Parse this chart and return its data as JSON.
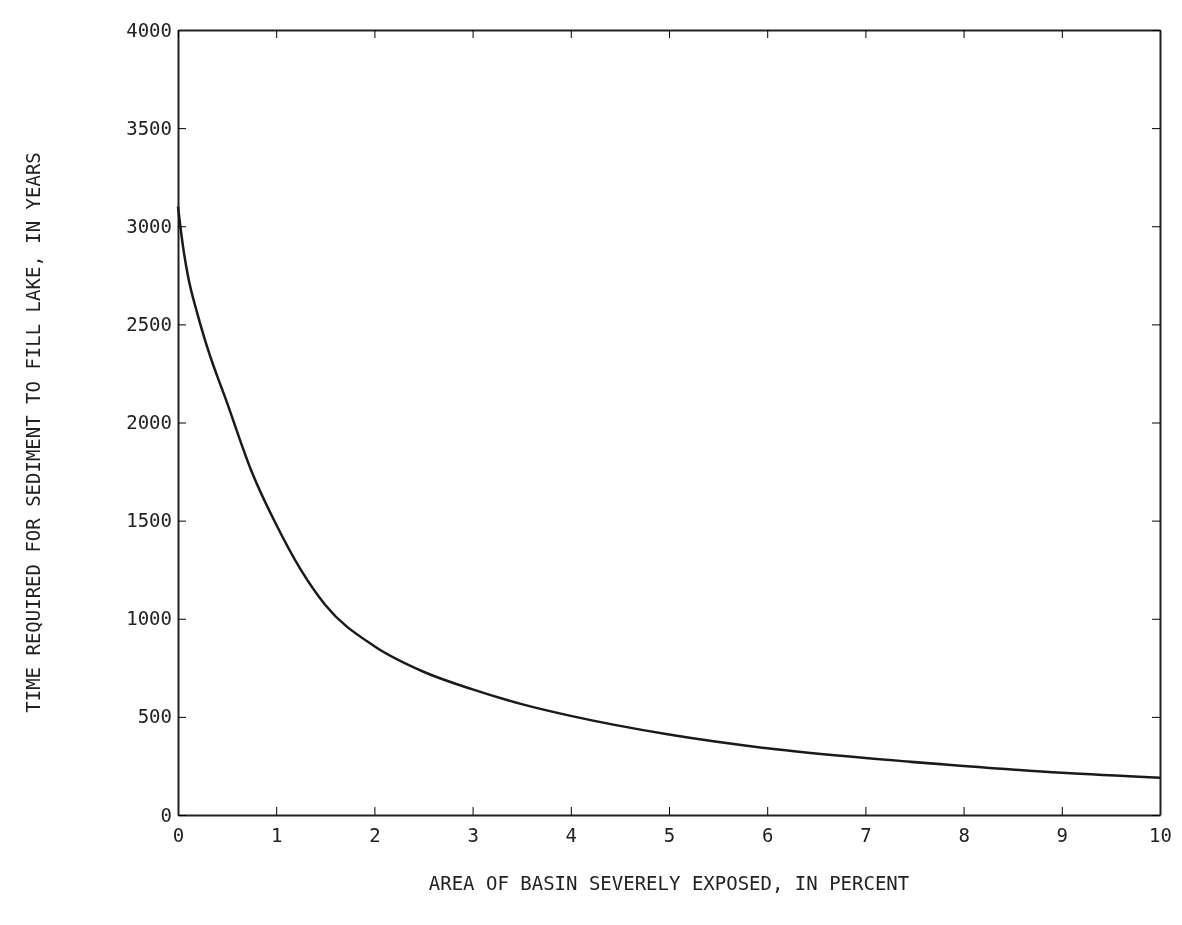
{
  "chart_data": {
    "type": "line",
    "xlabel": "AREA OF BASIN SEVERELY EXPOSED, IN PERCENT",
    "ylabel": "TIME REQUIRED FOR SEDIMENT TO FILL LAKE, IN YEARS",
    "x": [
      0,
      0.05,
      0.1,
      0.2,
      0.3,
      0.5,
      0.75,
      1,
      1.25,
      1.5,
      2,
      2.5,
      3,
      3.5,
      4,
      5,
      6,
      7,
      8,
      9,
      10
    ],
    "series": [
      {
        "color": "#1a1a1a",
        "values": [
          3100,
          2900,
          2750,
          2550,
          2380,
          2100,
          1750,
          1480,
          1250,
          1070,
          860,
          730,
          640,
          565,
          505,
          410,
          340,
          290,
          250,
          215,
          190
        ]
      }
    ],
    "xlim": [
      0,
      10
    ],
    "xticks": [
      0,
      1,
      2,
      3,
      4,
      5,
      6,
      7,
      8,
      9,
      10
    ],
    "ylim": [
      0,
      4000
    ],
    "yticks": [
      0,
      500,
      1000,
      1500,
      2000,
      2500,
      3000,
      3500,
      4000
    ],
    "grid": false,
    "marker": "none",
    "line_style": "solid"
  }
}
